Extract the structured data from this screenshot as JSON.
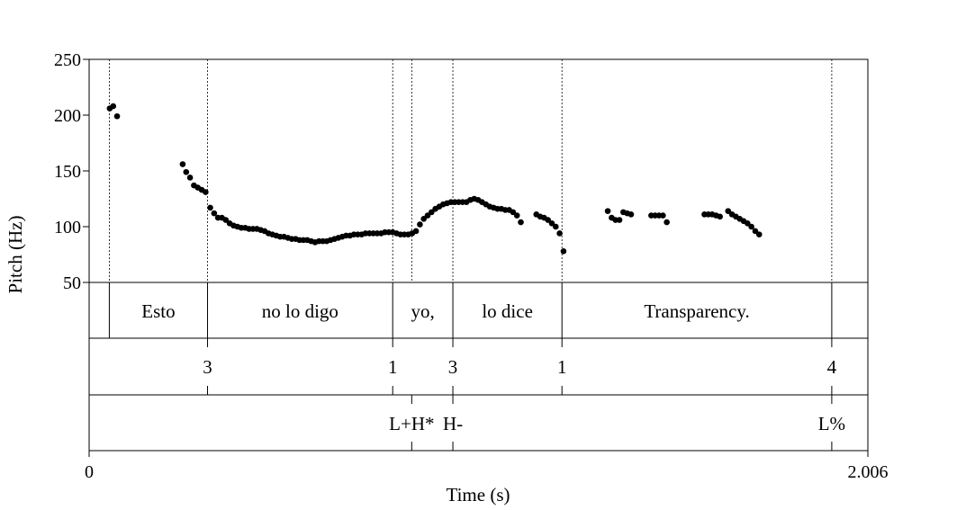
{
  "chart_data": {
    "type": "scatter",
    "title": "",
    "xlabel": "Time (s)",
    "ylabel": "Pitch (Hz)",
    "x_unit": "s",
    "xlim": [
      0,
      2.006
    ],
    "xlim_labels": [
      "0",
      "2.006"
    ],
    "ylim": [
      50,
      250
    ],
    "yticks": [
      50,
      100,
      150,
      200,
      250
    ],
    "ytick_labels": [
      "50",
      "100",
      "150",
      "200",
      "250"
    ],
    "grid": false,
    "legend": "none",
    "marker_color": "#000000",
    "series": [
      {
        "points": [
          [
            0.053,
            206
          ],
          [
            0.062,
            208
          ],
          [
            0.072,
            199
          ],
          [
            0.241,
            156
          ],
          [
            0.25,
            149
          ],
          [
            0.26,
            144
          ],
          [
            0.27,
            137
          ],
          [
            0.28,
            135
          ],
          [
            0.29,
            133
          ],
          [
            0.3,
            131
          ],
          [
            0.312,
            117
          ],
          [
            0.322,
            112
          ],
          [
            0.332,
            108
          ],
          [
            0.342,
            108
          ],
          [
            0.352,
            106
          ],
          [
            0.362,
            103
          ],
          [
            0.372,
            101
          ],
          [
            0.382,
            100
          ],
          [
            0.392,
            99
          ],
          [
            0.402,
            99
          ],
          [
            0.412,
            98
          ],
          [
            0.422,
            98
          ],
          [
            0.432,
            98
          ],
          [
            0.442,
            97
          ],
          [
            0.452,
            96
          ],
          [
            0.462,
            94
          ],
          [
            0.472,
            93
          ],
          [
            0.482,
            92
          ],
          [
            0.492,
            91
          ],
          [
            0.502,
            91
          ],
          [
            0.512,
            90
          ],
          [
            0.522,
            89
          ],
          [
            0.532,
            89
          ],
          [
            0.542,
            88
          ],
          [
            0.552,
            88
          ],
          [
            0.562,
            88
          ],
          [
            0.572,
            87
          ],
          [
            0.582,
            86
          ],
          [
            0.592,
            87
          ],
          [
            0.602,
            87
          ],
          [
            0.612,
            87
          ],
          [
            0.622,
            88
          ],
          [
            0.632,
            89
          ],
          [
            0.642,
            90
          ],
          [
            0.652,
            91
          ],
          [
            0.662,
            92
          ],
          [
            0.672,
            92
          ],
          [
            0.682,
            93
          ],
          [
            0.692,
            93
          ],
          [
            0.702,
            93
          ],
          [
            0.712,
            94
          ],
          [
            0.722,
            94
          ],
          [
            0.732,
            94
          ],
          [
            0.742,
            94
          ],
          [
            0.752,
            94
          ],
          [
            0.762,
            95
          ],
          [
            0.772,
            95
          ],
          [
            0.782,
            95
          ],
          [
            0.792,
            94
          ],
          [
            0.802,
            93
          ],
          [
            0.812,
            93
          ],
          [
            0.822,
            93
          ],
          [
            0.832,
            94
          ],
          [
            0.842,
            96
          ],
          [
            0.852,
            102
          ],
          [
            0.862,
            107
          ],
          [
            0.872,
            110
          ],
          [
            0.882,
            113
          ],
          [
            0.892,
            116
          ],
          [
            0.902,
            118
          ],
          [
            0.912,
            120
          ],
          [
            0.922,
            121
          ],
          [
            0.932,
            122
          ],
          [
            0.942,
            122
          ],
          [
            0.952,
            122
          ],
          [
            0.962,
            122
          ],
          [
            0.972,
            122
          ],
          [
            0.982,
            124
          ],
          [
            0.992,
            125
          ],
          [
            1.002,
            124
          ],
          [
            1.012,
            122
          ],
          [
            1.022,
            120
          ],
          [
            1.032,
            118
          ],
          [
            1.042,
            117
          ],
          [
            1.052,
            116
          ],
          [
            1.062,
            116
          ],
          [
            1.072,
            115
          ],
          [
            1.082,
            115
          ],
          [
            1.092,
            113
          ],
          [
            1.102,
            110
          ],
          [
            1.112,
            104
          ],
          [
            1.152,
            111
          ],
          [
            1.162,
            109
          ],
          [
            1.172,
            108
          ],
          [
            1.182,
            106
          ],
          [
            1.192,
            103
          ],
          [
            1.202,
            100
          ],
          [
            1.212,
            94
          ],
          [
            1.222,
            78
          ],
          [
            1.336,
            114
          ],
          [
            1.346,
            108
          ],
          [
            1.356,
            106
          ],
          [
            1.366,
            106
          ],
          [
            1.376,
            113
          ],
          [
            1.386,
            112
          ],
          [
            1.396,
            111
          ],
          [
            1.448,
            110
          ],
          [
            1.458,
            110
          ],
          [
            1.468,
            110
          ],
          [
            1.478,
            110
          ],
          [
            1.488,
            104
          ],
          [
            1.585,
            111
          ],
          [
            1.595,
            111
          ],
          [
            1.605,
            111
          ],
          [
            1.615,
            110
          ],
          [
            1.625,
            109
          ],
          [
            1.646,
            114
          ],
          [
            1.656,
            111
          ],
          [
            1.666,
            109
          ],
          [
            1.676,
            107
          ],
          [
            1.686,
            105
          ],
          [
            1.696,
            103
          ],
          [
            1.706,
            100
          ],
          [
            1.716,
            96
          ],
          [
            1.726,
            93
          ]
        ]
      }
    ],
    "tiers": [
      {
        "intervals": [
          {
            "xmin": 0.052,
            "xmax": 0.305,
            "label": "Esto"
          },
          {
            "xmin": 0.305,
            "xmax": 0.782,
            "label": "no lo digo"
          },
          {
            "xmin": 0.782,
            "xmax": 0.937,
            "label": "yo,"
          },
          {
            "xmin": 0.937,
            "xmax": 1.218,
            "label": "lo dice"
          },
          {
            "xmin": 1.218,
            "xmax": 1.913,
            "label": "Transparency."
          }
        ],
        "boundaries": [
          0.052,
          0.305,
          0.782,
          0.937,
          1.218,
          1.913
        ]
      },
      {
        "points": [
          {
            "time": 0.305,
            "label": "3"
          },
          {
            "time": 0.782,
            "label": "1"
          },
          {
            "time": 0.937,
            "label": "3"
          },
          {
            "time": 1.218,
            "label": "1"
          },
          {
            "time": 1.913,
            "label": "4"
          }
        ]
      },
      {
        "points": [
          {
            "time": 0.831,
            "label": "L+H*"
          },
          {
            "time": 0.937,
            "label": "H-"
          },
          {
            "time": 1.913,
            "label": "L%"
          }
        ]
      }
    ]
  }
}
